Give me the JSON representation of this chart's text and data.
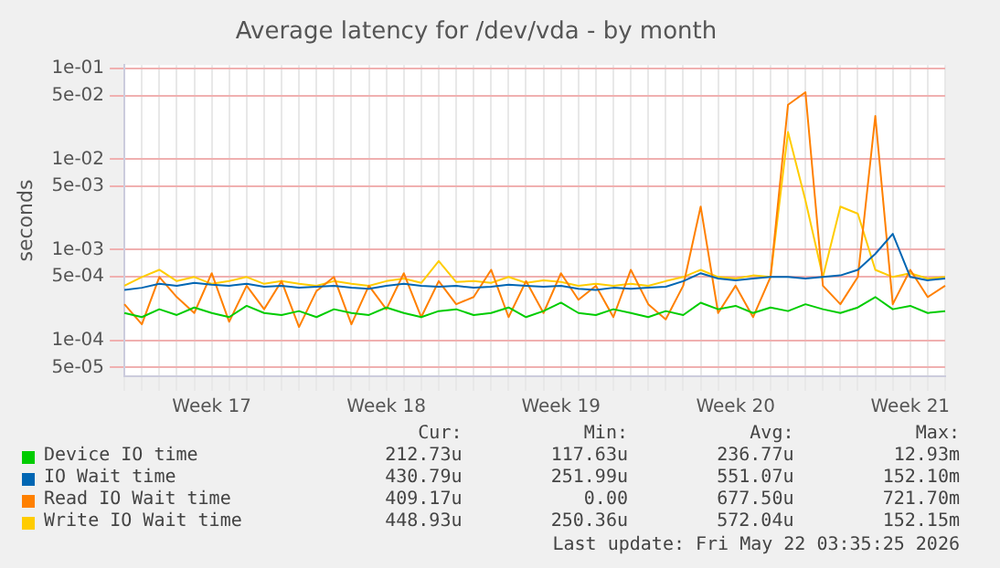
{
  "chart_data": {
    "type": "line",
    "title": "Average latency for /dev/vda - by month",
    "ylabel": "seconds",
    "log": "y",
    "grid": true,
    "legend": "bottom",
    "marker": "none",
    "line_style": "solid",
    "categories": [
      null,
      null,
      null,
      null,
      null,
      "Week 17",
      null,
      null,
      null,
      null,
      null,
      null,
      null,
      null,
      null,
      "Week 18",
      null,
      null,
      null,
      null,
      null,
      null,
      null,
      null,
      null,
      "Week 19",
      null,
      null,
      null,
      null,
      null,
      null,
      null,
      null,
      null,
      "Week 20",
      null,
      null,
      null,
      null,
      null,
      null,
      null,
      null,
      null,
      "Week 21",
      null,
      null
    ],
    "ylim": [
      4e-05,
      0.11
    ],
    "yticks": [
      {
        "value": 5e-05,
        "label": "5e-05"
      },
      {
        "value": 0.0001,
        "label": "1e-04"
      },
      {
        "value": 0.0005,
        "label": "5e-04"
      },
      {
        "value": 0.001,
        "label": "1e-03"
      },
      {
        "value": 0.005,
        "label": "5e-03"
      },
      {
        "value": 0.01,
        "label": "1e-02"
      },
      {
        "value": 0.05,
        "label": "5e-02"
      },
      {
        "value": 0.1,
        "label": "1e-01"
      }
    ],
    "series": [
      {
        "name": "Device IO time",
        "color": "#00cc00",
        "values": [
          0.0002,
          0.00018,
          0.00022,
          0.00019,
          0.00023,
          0.0002,
          0.00018,
          0.00024,
          0.0002,
          0.00019,
          0.00021,
          0.00018,
          0.00022,
          0.0002,
          0.00019,
          0.00023,
          0.0002,
          0.00018,
          0.00021,
          0.00022,
          0.00019,
          0.0002,
          0.00023,
          0.00018,
          0.00021,
          0.00026,
          0.0002,
          0.00019,
          0.00022,
          0.0002,
          0.00018,
          0.00021,
          0.00019,
          0.00026,
          0.00022,
          0.00024,
          0.0002,
          0.00023,
          0.00021,
          0.00025,
          0.00022,
          0.0002,
          0.00023,
          0.0003,
          0.00022,
          0.00024,
          0.0002,
          0.00021
        ]
      },
      {
        "name": "IO Wait time",
        "color": "#0066b3",
        "values": [
          0.00036,
          0.00038,
          0.00042,
          0.0004,
          0.00043,
          0.00041,
          0.0004,
          0.00042,
          0.00039,
          0.0004,
          0.00038,
          0.00039,
          0.0004,
          0.00038,
          0.00037,
          0.0004,
          0.00042,
          0.0004,
          0.00039,
          0.0004,
          0.00038,
          0.00039,
          0.00041,
          0.0004,
          0.00039,
          0.0004,
          0.00037,
          0.00036,
          0.00038,
          0.00037,
          0.00038,
          0.00039,
          0.00045,
          0.00055,
          0.00048,
          0.00046,
          0.00048,
          0.0005,
          0.0005,
          0.00048,
          0.0005,
          0.00052,
          0.0006,
          0.0009,
          0.0015,
          0.0005,
          0.00046,
          0.00048
        ]
      },
      {
        "name": "Read IO Wait time",
        "color": "#ff8000",
        "values": [
          0.00025,
          0.00015,
          0.0005,
          0.0003,
          0.0002,
          0.00055,
          0.00016,
          0.0004,
          0.00022,
          0.00045,
          0.00014,
          0.00035,
          0.0005,
          0.00015,
          0.0004,
          0.00022,
          0.00055,
          0.00018,
          0.00045,
          0.00025,
          0.0003,
          0.0006,
          0.00018,
          0.00045,
          0.0002,
          0.00055,
          0.00028,
          0.0004,
          0.00018,
          0.0006,
          0.00025,
          0.00017,
          0.0004,
          0.003,
          0.0002,
          0.0004,
          0.00018,
          0.0005,
          0.04,
          0.055,
          0.0004,
          0.00025,
          0.0005,
          0.03,
          0.00025,
          0.0006,
          0.0003,
          0.0004
        ]
      },
      {
        "name": "Write IO Wait time",
        "color": "#ffcc00",
        "values": [
          0.0004,
          0.0005,
          0.0006,
          0.00045,
          0.0005,
          0.00042,
          0.00045,
          0.0005,
          0.00042,
          0.00045,
          0.00042,
          0.0004,
          0.00045,
          0.00042,
          0.0004,
          0.00045,
          0.00048,
          0.00043,
          0.00075,
          0.00044,
          0.00045,
          0.00043,
          0.0005,
          0.00043,
          0.00046,
          0.00044,
          0.0004,
          0.00042,
          0.0004,
          0.00042,
          0.0004,
          0.00045,
          0.0005,
          0.0006,
          0.0005,
          0.00048,
          0.00052,
          0.0005,
          0.02,
          0.0035,
          0.0005,
          0.003,
          0.0025,
          0.0006,
          0.0005,
          0.00055,
          0.00048,
          0.0005
        ]
      }
    ],
    "annotations": [
      "Cur:",
      "Min:",
      "Avg:",
      "Max:",
      "212.73u",
      "117.63u",
      "236.77u",
      "12.93m",
      "430.79u",
      "251.99u",
      "551.07u",
      "152.10m",
      "409.17u",
      "0.00",
      "677.50u",
      "721.70m",
      "448.93u",
      "250.36u",
      "572.04u",
      "152.15m",
      "Last update: Fri May 22 03:35:25 2026"
    ]
  }
}
